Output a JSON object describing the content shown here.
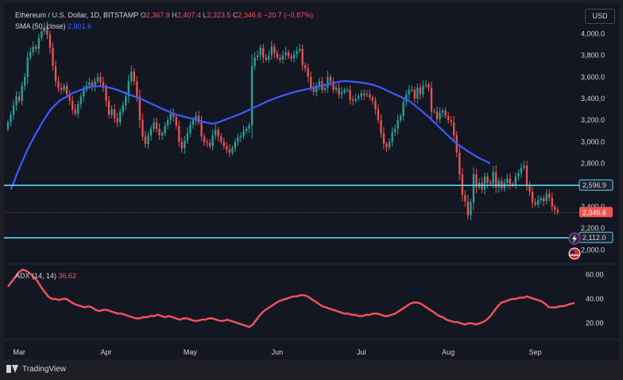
{
  "legend": {
    "title": "Ethereum / U.S. Dollar, 1D, BITSTAMP",
    "o_label": "O",
    "o_value": "2,367.9",
    "h_label": "H",
    "h_value": "2,407.4",
    "l_label": "L",
    "l_value": "2,323.5",
    "c_label": "C",
    "c_value": "2,346.6",
    "change": "−20.7 (−0.87%)",
    "sma_label": "SMA (50, close)",
    "sma_value": "2,801.6"
  },
  "adx_legend": {
    "label": "ADX (14, 14)",
    "value": "36.62"
  },
  "currency_button": "USD",
  "footer_brand": "TradingView",
  "colors": {
    "background": "#131722",
    "up": "#26a69a",
    "down": "#ef5350",
    "sma": "#3d5afe",
    "adx": "#f7525f",
    "hline": "#5ad8f0",
    "text": "#d1d4dc"
  },
  "icons": [
    "lightning-icon",
    "us-flag-icon",
    "tradingview-logo-icon"
  ],
  "chart_data": [
    {
      "type": "candlestick",
      "title": "Ethereum / U.S. Dollar, 1D, BITSTAMP",
      "ylim": [
        1900,
        4150
      ],
      "x_range": [
        "2024-02-26",
        "2024-09-15"
      ],
      "price_ticks": [
        "4,000.0",
        "3,800.0",
        "3,600.0",
        "3,400.0",
        "3,200.0",
        "3,000.0",
        "2,800.0",
        "2,400.0",
        "2,200.0",
        "2,000.0"
      ],
      "price_tick_values": [
        4000,
        3800,
        3600,
        3400,
        3200,
        3000,
        2800,
        2400,
        2200,
        2000
      ],
      "x_ticks": [
        "Mar",
        "Apr",
        "May",
        "Jun",
        "Jul",
        "Aug",
        "Sep"
      ],
      "x_tick_dates": [
        "2024-03-01",
        "2024-04-01",
        "2024-05-01",
        "2024-06-01",
        "2024-07-01",
        "2024-08-01",
        "2024-09-01"
      ],
      "start_date": "2024-02-26",
      "close_series": [
        3180,
        3250,
        3340,
        3420,
        3380,
        3520,
        3600,
        3780,
        3830,
        3880,
        3860,
        3960,
        4020,
        4060,
        3990,
        3870,
        3700,
        3560,
        3500,
        3480,
        3520,
        3440,
        3380,
        3300,
        3260,
        3350,
        3420,
        3480,
        3520,
        3550,
        3510,
        3560,
        3600,
        3550,
        3500,
        3380,
        3250,
        3300,
        3220,
        3180,
        3280,
        3340,
        3420,
        3560,
        3650,
        3560,
        3420,
        3200,
        3050,
        2980,
        3060,
        3120,
        3180,
        3120,
        3060,
        3080,
        3150,
        3200,
        3260,
        3230,
        3150,
        3000,
        2940,
        3010,
        3080,
        3160,
        3200,
        3240,
        3180,
        3050,
        3000,
        2990,
        2960,
        3060,
        3110,
        3050,
        3000,
        2960,
        2930,
        2900,
        2940,
        3000,
        3040,
        3050,
        3100,
        3120,
        3150,
        3700,
        3780,
        3800,
        3870,
        3780,
        3760,
        3800,
        3880,
        3820,
        3780,
        3760,
        3800,
        3830,
        3790,
        3770,
        3810,
        3840,
        3860,
        3710,
        3680,
        3600,
        3500,
        3460,
        3520,
        3560,
        3480,
        3500,
        3600,
        3560,
        3480,
        3500,
        3440,
        3460,
        3480,
        3480,
        3390,
        3380,
        3400,
        3420,
        3450,
        3430,
        3440,
        3410,
        3380,
        3300,
        3200,
        3080,
        2980,
        2950,
        3000,
        3090,
        3120,
        3200,
        3240,
        3370,
        3440,
        3480,
        3480,
        3400,
        3500,
        3440,
        3520,
        3530,
        3500,
        3280,
        3280,
        3210,
        3270,
        3290,
        3240,
        3200,
        3180,
        3060,
        2900,
        2700,
        2510,
        2450,
        2320,
        2440,
        2700,
        2580,
        2620,
        2560,
        2680,
        2620,
        2610,
        2720,
        2580,
        2640,
        2570,
        2620,
        2660,
        2610,
        2600,
        2680,
        2710,
        2760,
        2780,
        2600,
        2540,
        2440,
        2420,
        2460,
        2480,
        2450,
        2520,
        2480,
        2400,
        2370,
        2346.6
      ],
      "sma_series": [
        2560,
        2620,
        2690,
        2750,
        2810,
        2870,
        2930,
        2980,
        3030,
        3080,
        3120,
        3170,
        3210,
        3250,
        3290,
        3320,
        3345,
        3370,
        3390,
        3405,
        3420,
        3435,
        3450,
        3460,
        3470,
        3480,
        3490,
        3498,
        3505,
        3510,
        3515,
        3515,
        3514,
        3512,
        3508,
        3502,
        3495,
        3488,
        3480,
        3470,
        3460,
        3450,
        3440,
        3430,
        3420,
        3410,
        3400,
        3390,
        3378,
        3366,
        3354,
        3342,
        3330,
        3318,
        3306,
        3294,
        3283,
        3272,
        3262,
        3253,
        3245,
        3238,
        3231,
        3225,
        3218,
        3211,
        3204,
        3197,
        3190,
        3183,
        3177,
        3172,
        3168,
        3172,
        3180,
        3190,
        3200,
        3210,
        3220,
        3230,
        3240,
        3250,
        3260,
        3272,
        3284,
        3296,
        3308,
        3320,
        3332,
        3344,
        3356,
        3368,
        3380,
        3390,
        3400,
        3410,
        3420,
        3428,
        3436,
        3444,
        3452,
        3460,
        3466,
        3472,
        3478,
        3484,
        3490,
        3496,
        3502,
        3508,
        3514,
        3520,
        3526,
        3532,
        3538,
        3544,
        3550,
        3556,
        3560,
        3562,
        3560,
        3558,
        3556,
        3554,
        3552,
        3548,
        3544,
        3540,
        3534,
        3528,
        3520,
        3512,
        3500,
        3488,
        3476,
        3464,
        3452,
        3440,
        3428,
        3416,
        3404,
        3392,
        3380,
        3360,
        3340,
        3318,
        3296,
        3274,
        3252,
        3230,
        3205,
        3180,
        3155,
        3130,
        3105,
        3080,
        3055,
        3030,
        3005,
        2985,
        2966,
        2948,
        2930,
        2912,
        2896,
        2880,
        2864,
        2850,
        2838,
        2826,
        2812,
        2801.6
      ],
      "sma_start_index": 1,
      "horizontal_lines": [
        {
          "value": 2596.9,
          "label": "2,596.9"
        },
        {
          "value": 2112.0,
          "label": "2,112.0"
        }
      ],
      "last_price": {
        "value": 2346.6,
        "label": "2,346.6"
      }
    },
    {
      "type": "line",
      "title": "ADX (14, 14)",
      "ylim": [
        10,
        70
      ],
      "y_ticks": [
        "60.00",
        "40.00",
        "20.00"
      ],
      "y_tick_values": [
        60,
        40,
        20
      ],
      "adx_series": [
        50,
        54,
        58,
        62,
        64,
        63,
        61,
        58,
        55,
        50,
        46,
        42,
        40,
        40,
        39,
        40,
        40,
        38,
        36,
        35,
        34,
        33,
        34,
        33,
        31,
        30,
        31,
        31,
        30,
        29,
        28,
        28,
        27,
        26,
        25,
        24,
        24,
        25,
        25,
        26,
        26,
        27,
        26,
        25,
        26,
        25,
        24,
        23,
        24,
        24,
        23,
        22,
        22,
        23,
        23,
        24,
        24,
        23,
        22,
        22,
        23,
        22,
        21,
        20,
        19,
        18,
        17,
        19,
        23,
        27,
        30,
        32,
        34,
        36,
        38,
        39,
        40,
        41,
        42,
        42,
        43,
        43,
        42,
        40,
        38,
        36,
        34,
        33,
        32,
        31,
        30,
        29,
        28,
        28,
        27,
        27,
        26,
        26,
        27,
        27,
        28,
        28,
        27,
        26,
        26,
        27,
        28,
        30,
        32,
        34,
        36,
        37,
        37,
        36,
        34,
        32,
        30,
        28,
        26,
        25,
        23,
        22,
        21,
        21,
        20,
        19,
        20,
        20,
        19,
        20,
        21,
        23,
        26,
        30,
        34,
        37,
        38,
        39,
        40,
        40,
        41,
        41,
        42,
        41,
        40,
        39,
        38,
        36,
        33,
        33,
        33,
        34,
        34,
        35,
        36,
        36.62
      ]
    }
  ]
}
